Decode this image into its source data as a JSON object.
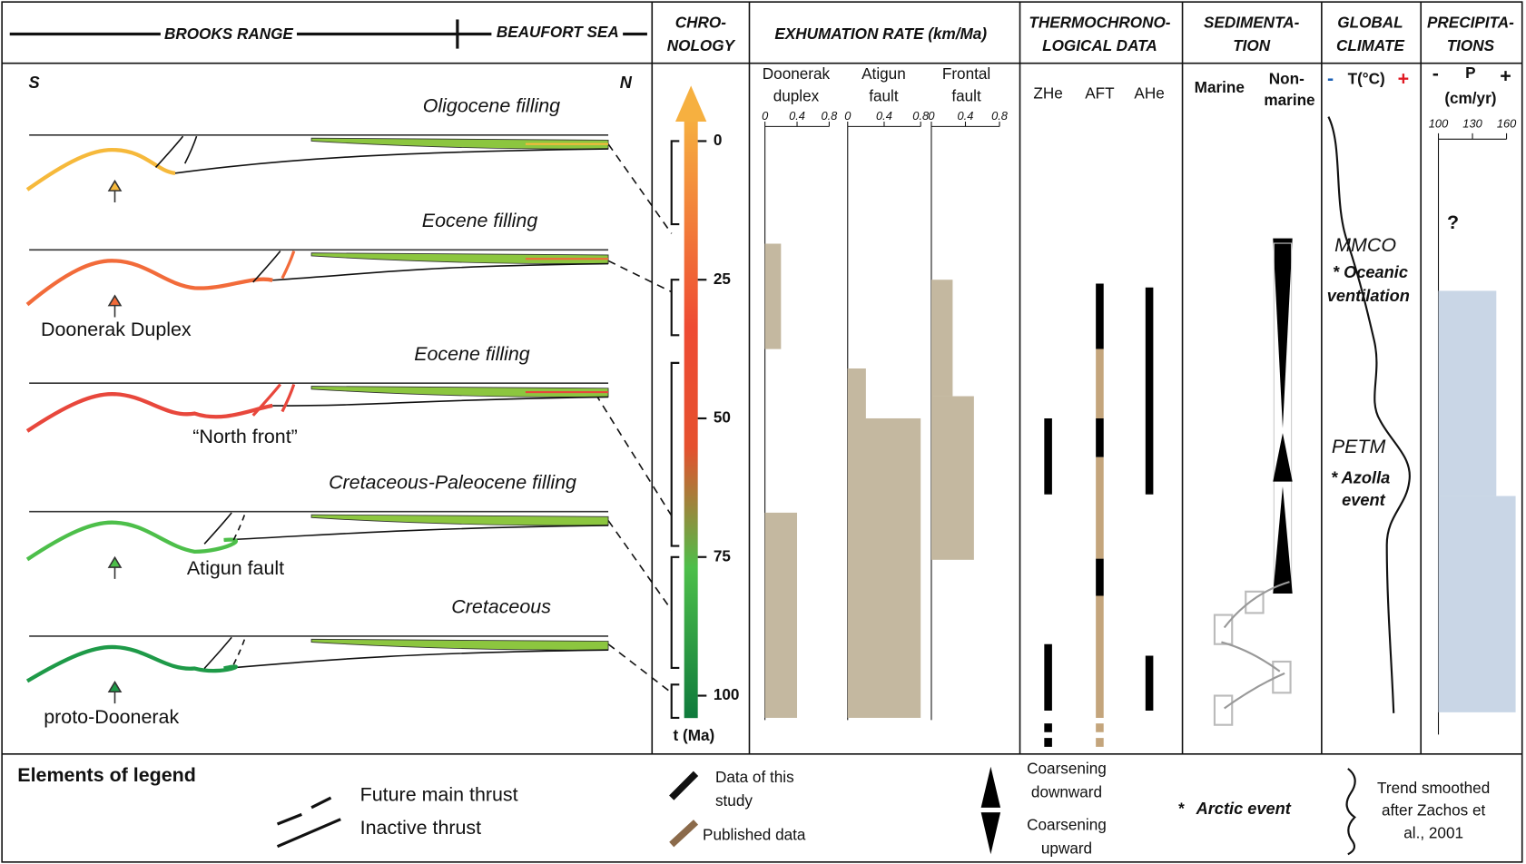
{
  "header": {
    "left": "BROOKS RANGE",
    "right": "BEAUFORT SEA",
    "chronology": [
      "CHRO-",
      "NOLOGY"
    ],
    "exhumation": "EXHUMATION RATE (km/Ma)",
    "thermo": [
      "THERMOCHRONO-",
      "LOGICAL DATA"
    ],
    "sedimentation": [
      "SEDIMENTA-",
      "TION"
    ],
    "climate": [
      "GLOBAL",
      "CLIMATE"
    ],
    "precipitation": [
      "PRECIPITA-",
      "TIONS"
    ]
  },
  "sections": {
    "south": "S",
    "north": "N",
    "items": [
      {
        "filling": "Oligocene filling",
        "color": "#f6b93b"
      },
      {
        "filling": "Eocene filling",
        "structure": "Doonerak Duplex",
        "color": "#f26b3a"
      },
      {
        "filling": "Eocene filling",
        "structure": "“North front”",
        "color": "#e8473c"
      },
      {
        "filling": "Cretaceous-Paleocene  filling",
        "structure": "Atigun fault",
        "color": "#4dbf4a"
      },
      {
        "filling": "Cretaceous",
        "structure": "proto-Doonerak",
        "color": "#1e9a48"
      }
    ]
  },
  "chronology": {
    "ylim": [
      0,
      100
    ],
    "yticks": [
      0,
      25,
      50,
      75,
      100
    ],
    "label": "t (Ma)",
    "intervals": [
      [
        0,
        15
      ],
      [
        25,
        35
      ],
      [
        40,
        73
      ],
      [
        75,
        95
      ],
      [
        98,
        104
      ]
    ]
  },
  "exhumation": {
    "xlim": [
      0,
      0.8
    ],
    "xticks": [
      0,
      0.4,
      0.8
    ],
    "color": "#c4b8a0",
    "panels": [
      {
        "name": [
          "Doonerak",
          "duplex"
        ],
        "steps": [
          {
            "age": [
              18.5,
              37.5
            ],
            "rate": 0.2
          },
          {
            "age": [
              67,
              104
            ],
            "rate": 0.4
          }
        ]
      },
      {
        "name": [
          "Atigun",
          "fault"
        ],
        "steps": [
          {
            "age": [
              41,
              50
            ],
            "rate": 0.2
          },
          {
            "age": [
              50,
              104
            ],
            "rate": 0.8
          }
        ]
      },
      {
        "name": [
          "Frontal",
          "fault"
        ],
        "steps": [
          {
            "age": [
              25,
              46
            ],
            "rate": 0.25
          },
          {
            "age": [
              46,
              75.5
            ],
            "rate": 0.5
          }
        ]
      }
    ]
  },
  "thermo": {
    "columns": [
      {
        "name": "ZHe",
        "intervals": [
          {
            "age": [
              50,
              63.7
            ],
            "color": "#000000"
          },
          {
            "age": [
              90.7,
              102.7
            ],
            "color": "#000000"
          },
          {
            "age": [
              105,
              110
            ],
            "color": "#000000",
            "style": "dashed"
          }
        ]
      },
      {
        "name": "AFT",
        "intervals": [
          {
            "age": [
              25.7,
              37.5
            ],
            "color": "#000000"
          },
          {
            "age": [
              37.5,
              50
            ],
            "color": "#c4a57c"
          },
          {
            "age": [
              50,
              57
            ],
            "color": "#000000"
          },
          {
            "age": [
              57,
              75.3
            ],
            "color": "#c4a57c"
          },
          {
            "age": [
              75.3,
              82
            ],
            "color": "#000000"
          },
          {
            "age": [
              82,
              104
            ],
            "color": "#c4a57c"
          },
          {
            "age": [
              105,
              110
            ],
            "color": "#c4a57c",
            "style": "dashed"
          }
        ]
      },
      {
        "name": "AHe",
        "intervals": [
          {
            "age": [
              26.4,
              63.7
            ],
            "color": "#000000"
          },
          {
            "age": [
              92.8,
              102.7
            ],
            "color": "#000000"
          }
        ]
      }
    ]
  },
  "sedimentation": {
    "marine": "Marine",
    "nonmarine": [
      "Non-",
      "marine"
    ]
  },
  "climate": {
    "minus": "-",
    "label": "T(°C)",
    "plus": "+",
    "mmco": "MMCO",
    "ventilation": [
      "* Oceanic",
      "ventilation"
    ],
    "petm": "PETM",
    "azolla": [
      "* Azolla",
      "event"
    ]
  },
  "precipitation": {
    "minus": "-",
    "label": "P",
    "plus": "+",
    "unit": "(cm/yr)",
    "question": "?",
    "xlim": [
      100,
      160
    ],
    "xticks": [
      100,
      130,
      160
    ],
    "color": "#c9d6e6",
    "bars": [
      {
        "age": [
          27,
          64
        ],
        "value": 151
      },
      {
        "age": [
          64,
          103
        ],
        "value": 168
      }
    ]
  },
  "legend": {
    "title": "Elements of legend",
    "future": "Future main thrust",
    "inactive": "Inactive thrust",
    "this_study": [
      "Data of this",
      "study"
    ],
    "published": "Published data",
    "coarsening_down": [
      "Coarsening",
      "downward"
    ],
    "coarsening_up": [
      "Coarsening",
      "upward"
    ],
    "arctic_mark": "*",
    "arctic": "Arctic event",
    "trend": [
      "Trend smoothed",
      "after Zachos et",
      "al., 2001"
    ]
  }
}
